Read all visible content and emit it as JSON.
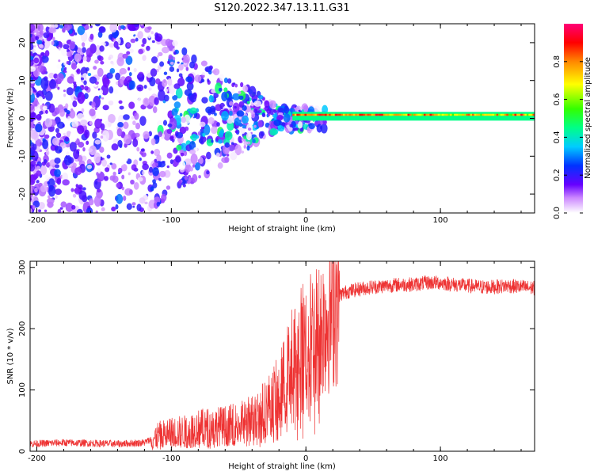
{
  "chart_data": [
    {
      "type": "heatmap",
      "title": "S120.2022.347.13.11.G31",
      "xlabel": "Height of straight line (km)",
      "ylabel": "Frequency (Hz)",
      "xlim": [
        -205,
        170
      ],
      "ylim": [
        -25,
        25
      ],
      "xticks": [
        -200,
        -100,
        0,
        100
      ],
      "xtick_labels": [
        "-200",
        "-100",
        "0",
        "100"
      ],
      "yticks": [
        -20,
        -10,
        0,
        10,
        20
      ],
      "ytick_labels": [
        "-20",
        "-10",
        "0",
        "10",
        "20"
      ],
      "ridge": {
        "description_values": "bright narrow band near 0 Hz from about -10 km to 170 km",
        "x_start": -10,
        "x_end": 170,
        "frequency": 0.5
      },
      "colorbar": {
        "label": "Normalized spectral amplitude",
        "range": [
          0.0,
          1.0
        ],
        "ticks": [
          0.0,
          0.2,
          0.4,
          0.6,
          0.8
        ],
        "tick_labels": [
          "0.0",
          "0.2",
          "0.4",
          "0.6",
          "0.8"
        ]
      }
    },
    {
      "type": "line",
      "xlabel": "Height of straight line (km)",
      "ylabel": "SNR (10 * v/v)",
      "xlim": [
        -205,
        170
      ],
      "ylim": [
        0,
        310
      ],
      "xticks": [
        -200,
        -100,
        0,
        100
      ],
      "xtick_labels": [
        "-200",
        "-100",
        "0",
        "100"
      ],
      "yticks": [
        0,
        100,
        200,
        300
      ],
      "ytick_labels": [
        "0",
        "100",
        "200",
        "300"
      ],
      "series": [
        {
          "name": "SNR",
          "color": "#ee3333",
          "x": [
            -205,
            -180,
            -160,
            -140,
            -120,
            -110,
            -100,
            -90,
            -80,
            -70,
            -60,
            -50,
            -40,
            -30,
            -20,
            -15,
            -10,
            -5,
            0,
            5,
            10,
            15,
            20,
            25,
            30,
            40,
            50,
            60,
            70,
            80,
            90,
            100,
            110,
            120,
            130,
            140,
            150,
            160,
            170
          ],
          "y": [
            12,
            14,
            13,
            12,
            14,
            25,
            30,
            32,
            38,
            40,
            42,
            45,
            55,
            70,
            95,
            120,
            150,
            165,
            180,
            190,
            195,
            215,
            240,
            255,
            260,
            265,
            268,
            270,
            272,
            272,
            275,
            275,
            272,
            270,
            268,
            268,
            270,
            268,
            266
          ]
        }
      ]
    }
  ]
}
